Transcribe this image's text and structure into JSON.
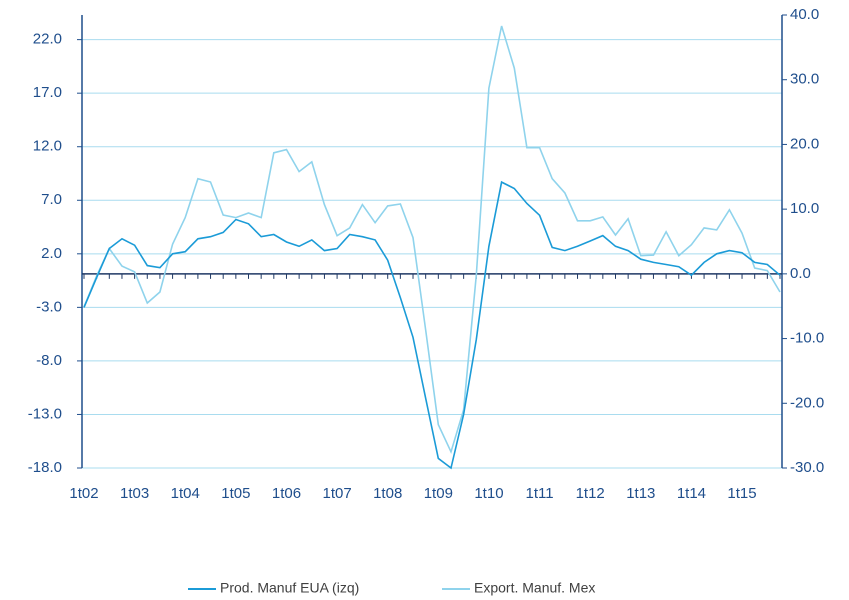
{
  "chart_data": {
    "type": "line",
    "categories": [
      "1t02",
      null,
      null,
      null,
      "1t03",
      null,
      null,
      null,
      "1t04",
      null,
      null,
      null,
      "1t05",
      null,
      null,
      null,
      "1t06",
      null,
      null,
      null,
      "1t07",
      null,
      null,
      null,
      "1t08",
      null,
      null,
      null,
      "1t09",
      null,
      null,
      null,
      "1t10",
      null,
      null,
      null,
      "1t11",
      null,
      null,
      null,
      "1t12",
      null,
      null,
      null,
      "1t13",
      null,
      null,
      null,
      "1t14",
      null,
      null,
      null,
      "1t15",
      null,
      null,
      null
    ],
    "series": [
      {
        "name": "Prod. Manuf EUA (izq)",
        "color": "#1b9bd7",
        "axis": "y",
        "values": [
          -3.0,
          -0.2,
          2.5,
          3.4,
          2.8,
          0.9,
          0.7,
          2.0,
          2.2,
          3.4,
          3.6,
          4.0,
          5.2,
          4.8,
          3.6,
          3.8,
          3.1,
          2.7,
          3.3,
          2.3,
          2.5,
          3.8,
          3.6,
          3.3,
          1.4,
          -2.1,
          -5.8,
          -11.5,
          -17.1,
          -18.0,
          -13.0,
          -6.0,
          2.7,
          8.7,
          8.1,
          6.7,
          5.6,
          2.6,
          2.3,
          2.7,
          3.2,
          3.7,
          2.7,
          2.3,
          1.5,
          1.2,
          1.0,
          0.8,
          0.0,
          1.2,
          2.0,
          2.3,
          2.1,
          1.2,
          1.0,
          0.0
        ]
      },
      {
        "name": "Export. Manuf. Mex",
        "color": "#8fd3ec",
        "axis": "y2",
        "values": [
          -5.1,
          -0.3,
          3.9,
          1.2,
          0.3,
          -4.5,
          -2.8,
          4.6,
          8.7,
          14.7,
          14.2,
          9.1,
          8.7,
          9.4,
          8.7,
          18.7,
          19.2,
          15.8,
          17.3,
          10.7,
          5.9,
          7.1,
          10.7,
          7.9,
          10.5,
          10.8,
          5.6,
          -8.7,
          -23.3,
          -27.5,
          -21.0,
          -0.2,
          28.7,
          38.3,
          31.8,
          19.5,
          19.5,
          14.7,
          12.5,
          8.2,
          8.2,
          8.8,
          6.0,
          8.5,
          2.8,
          2.9,
          6.5,
          2.8,
          4.5,
          7.1,
          6.8,
          9.9,
          6.3,
          0.9,
          0.5,
          -2.8
        ]
      }
    ],
    "ylim": [
      -18,
      24.3
    ],
    "yticks": [
      {
        "value": -18,
        "label": "-18.0"
      },
      {
        "value": -13,
        "label": "-13.0"
      },
      {
        "value": -8,
        "label": "-8.0"
      },
      {
        "value": -3,
        "label": "-3.0"
      },
      {
        "value": 2,
        "label": "2.0"
      },
      {
        "value": 7,
        "label": "7.0"
      },
      {
        "value": 12,
        "label": "12.0"
      },
      {
        "value": 17,
        "label": "17.0"
      },
      {
        "value": 22,
        "label": "22.0"
      }
    ],
    "y2lim": [
      -30,
      40
    ],
    "y2ticks": [
      {
        "value": -30,
        "label": "-30.0"
      },
      {
        "value": -20,
        "label": "-20.0"
      },
      {
        "value": -10,
        "label": "-10.0"
      },
      {
        "value": 0,
        "label": "0.0"
      },
      {
        "value": 10,
        "label": "10.0"
      },
      {
        "value": 20,
        "label": "20.0"
      },
      {
        "value": 30,
        "label": "30.0"
      },
      {
        "value": 40,
        "label": "40.0"
      }
    ],
    "grid": true,
    "legend": "bottom"
  }
}
